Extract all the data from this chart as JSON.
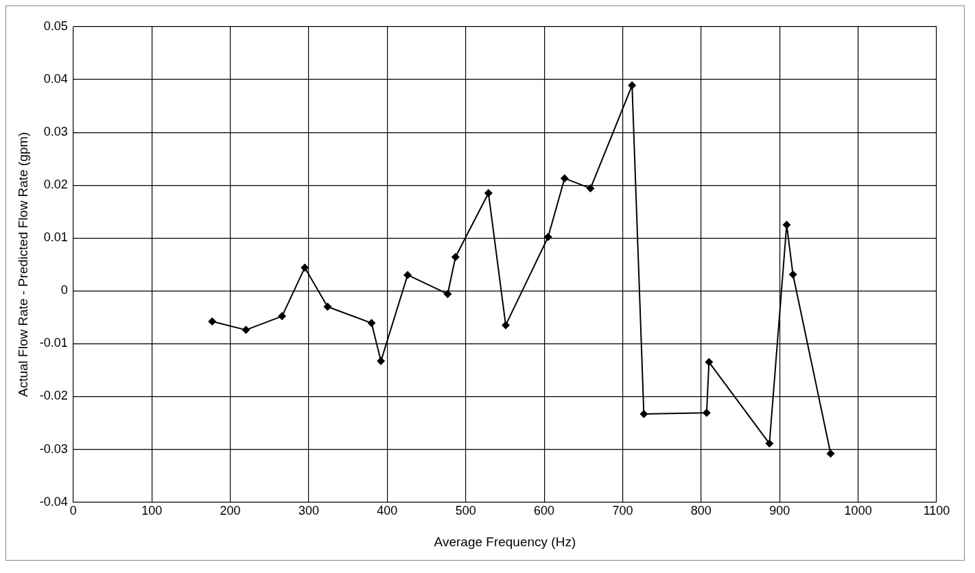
{
  "chart_data": {
    "type": "line",
    "xlabel": "Average Frequency (Hz)",
    "ylabel": "Actual Flow Rate - Predicted Flow Rate (gpm)",
    "x": [
      177,
      220,
      266,
      295,
      324,
      380,
      392,
      426,
      477,
      487,
      529,
      551,
      605,
      626,
      659,
      712,
      727,
      807,
      810,
      887,
      909,
      917,
      965
    ],
    "series": [
      {
        "color": "#000000",
        "values": [
          -0.0058,
          -0.0074,
          -0.0048,
          0.0044,
          -0.003,
          -0.0061,
          -0.0133,
          0.003,
          -0.0006,
          0.0064,
          0.0185,
          -0.0065,
          0.0102,
          0.0213,
          0.0194,
          0.0389,
          -0.0233,
          -0.0231,
          -0.0135,
          -0.0289,
          0.0125,
          0.0031,
          -0.0308
        ]
      }
    ],
    "xlim": [
      0,
      1100
    ],
    "xticks": [
      0,
      100,
      200,
      300,
      400,
      500,
      600,
      700,
      800,
      900,
      1000,
      1100
    ],
    "ylim": [
      -0.04,
      0.05
    ],
    "yticks": [
      -0.04,
      -0.03,
      -0.02,
      -0.01,
      0,
      0.01,
      0.02,
      0.03,
      0.04,
      0.05
    ],
    "grid": true,
    "legend": false,
    "marker": "diamond",
    "line_style": "solid"
  }
}
